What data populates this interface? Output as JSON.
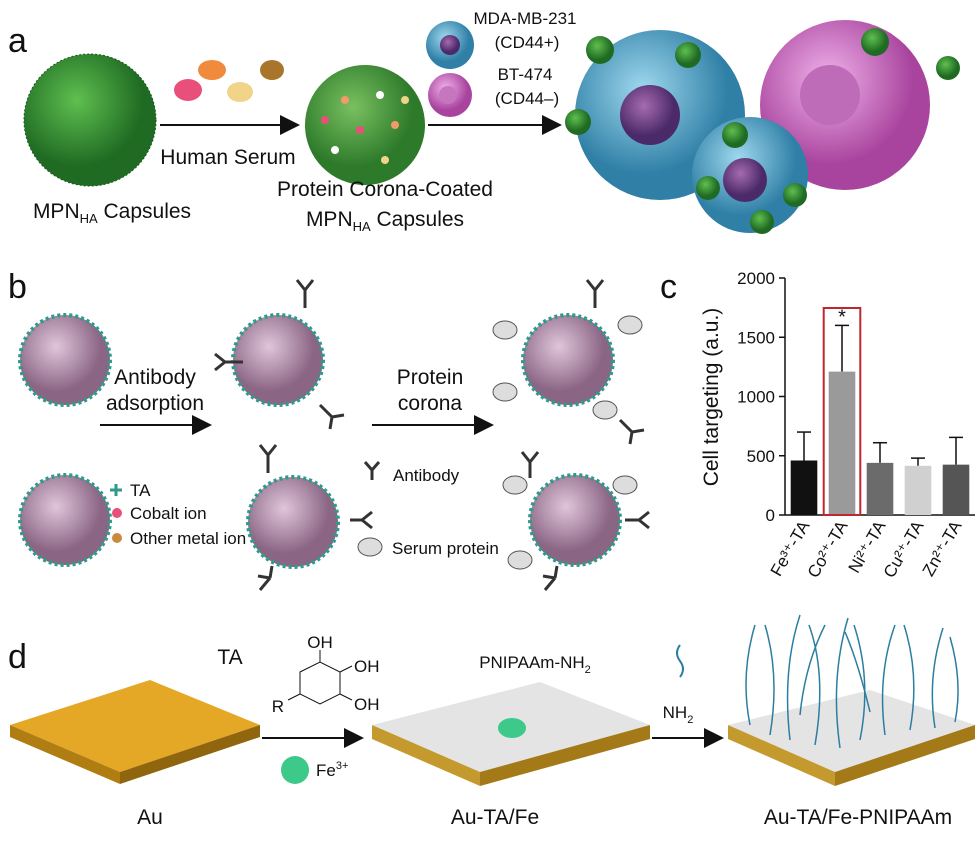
{
  "panel_labels": [
    "a",
    "b",
    "c",
    "d"
  ],
  "panel_a": {
    "capsule_label": {
      "main": "MPN",
      "sub": "HA",
      "tail": " Capsules"
    },
    "arrow_label": "Human Serum",
    "corona_label_line1": "Protein Corona-Coated",
    "corona_label_line2": {
      "main": "MPN",
      "sub": "HA",
      "tail": " Capsules"
    },
    "cell1": {
      "name": "MDA-MB-231",
      "marker": "(CD44+)"
    },
    "cell2": {
      "name": "BT-474",
      "marker": "(CD44–)"
    }
  },
  "panel_b": {
    "step1": [
      "Antibody",
      "adsorption"
    ],
    "step2": [
      "Protein",
      "corona"
    ],
    "legend": [
      "TA",
      "Cobalt ion",
      "Other metal ion",
      "Antibody",
      "Serum protein"
    ]
  },
  "chart_data": {
    "type": "bar",
    "y_label": "Cell targeting (a.u.)",
    "categories": [
      "Fe³⁺-TA",
      "Co²⁺-TA",
      "Ni²⁺-TA",
      "Cu²⁺-TA",
      "Zn²⁺-TA"
    ],
    "values": [
      460,
      1210,
      440,
      415,
      425
    ],
    "errors": [
      240,
      390,
      170,
      65,
      230
    ],
    "colors": [
      "#111111",
      "#9a9a9a",
      "#6b6b6b",
      "#d0d0d0",
      "#555555"
    ],
    "highlight_color": "#c0272d",
    "annotation": "*",
    "ylim": [
      0,
      2000
    ],
    "yticks": [
      0,
      500,
      1000,
      1500,
      2000
    ]
  },
  "panel_d": {
    "reagent": "TA",
    "substituent": "R",
    "hydroxyls": [
      "OH",
      "OH",
      "OH"
    ],
    "ion": {
      "base": "Fe",
      "sup": "3+"
    },
    "polymer": {
      "main": "PNIPAAm-NH",
      "sub": "2"
    },
    "end_group": {
      "main": "NH",
      "sub": "2"
    },
    "labels": [
      "Au",
      "Au-TA/Fe",
      "Au-TA/Fe-PNIPAAm"
    ]
  }
}
